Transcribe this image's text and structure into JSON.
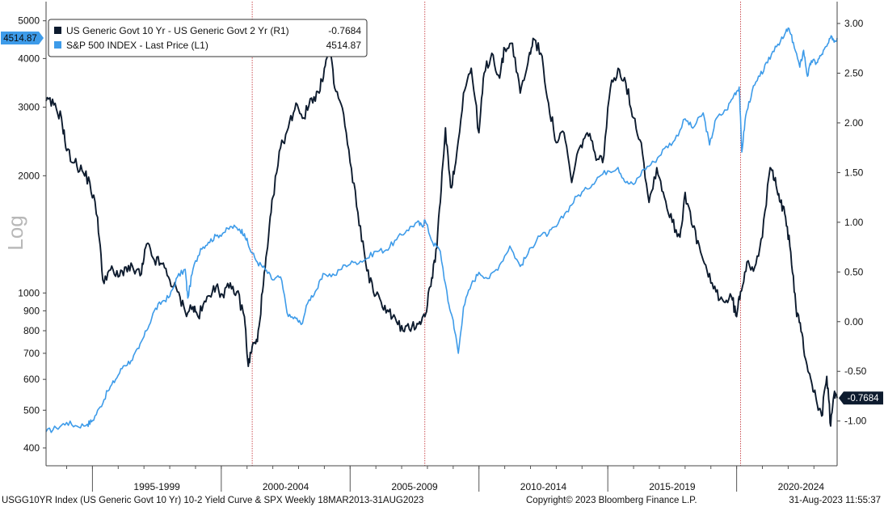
{
  "chart_data": {
    "type": "line",
    "frequency": "Weekly",
    "date_range_text": "18MAR2013-31AUG2023",
    "x_tick_labels": [
      "1995-1999",
      "2000-2004",
      "2005-2009",
      "2010-2014",
      "2015-2019",
      "2020-2024"
    ],
    "y_left": {
      "scale": "log",
      "label": "Log",
      "ylim": [
        360,
        5600
      ],
      "ticks": [
        400,
        500,
        600,
        700,
        800,
        900,
        1000,
        2000,
        3000,
        4000,
        5000
      ],
      "tick_labels": [
        "400",
        "500",
        "600",
        "700",
        "800",
        "900",
        "1000",
        "2000",
        "3000",
        "4000",
        "5000"
      ]
    },
    "y_right": {
      "scale": "linear",
      "ylim": [
        -1.45,
        3.22
      ],
      "ticks": [
        -1.0,
        -0.5,
        0.0,
        0.5,
        1.0,
        1.5,
        2.0,
        2.5,
        3.0
      ],
      "tick_labels": [
        "-1.00",
        "-0.50",
        "0.00",
        "0.50",
        "1.00",
        "1.50",
        "2.00",
        "2.50",
        "3.00"
      ]
    },
    "x_range": [
      1993.2,
      2023.9
    ],
    "recession_lines": [
      2001.2,
      2007.9,
      2020.15
    ],
    "series": [
      {
        "name": "US Generic Govt 10 Yr - US Generic Govt 2 Yr (R1)",
        "axis": "right",
        "color": "#0d1b2e",
        "last_value": -0.7684,
        "last_value_label": "-0.7684",
        "points": [
          [
            1993.2,
            2.22
          ],
          [
            1993.5,
            2.18
          ],
          [
            1993.8,
            2.05
          ],
          [
            1994.0,
            1.72
          ],
          [
            1994.3,
            1.6
          ],
          [
            1994.6,
            1.52
          ],
          [
            1994.9,
            1.4
          ],
          [
            1995.2,
            1.05
          ],
          [
            1995.4,
            0.42
          ],
          [
            1995.7,
            0.52
          ],
          [
            1996.0,
            0.45
          ],
          [
            1996.3,
            0.55
          ],
          [
            1996.6,
            0.52
          ],
          [
            1996.9,
            0.48
          ],
          [
            1997.1,
            0.78
          ],
          [
            1997.4,
            0.62
          ],
          [
            1997.7,
            0.58
          ],
          [
            1998.0,
            0.42
          ],
          [
            1998.3,
            0.3
          ],
          [
            1998.6,
            0.1
          ],
          [
            1998.9,
            0.15
          ],
          [
            1999.1,
            0.05
          ],
          [
            1999.4,
            0.2
          ],
          [
            1999.7,
            0.36
          ],
          [
            2000.0,
            0.28
          ],
          [
            2000.3,
            0.34
          ],
          [
            2000.6,
            0.3
          ],
          [
            2000.9,
            0.05
          ],
          [
            2001.05,
            -0.45
          ],
          [
            2001.2,
            -0.25
          ],
          [
            2001.4,
            -0.2
          ],
          [
            2001.6,
            0.3
          ],
          [
            2001.8,
            0.75
          ],
          [
            2002.0,
            1.25
          ],
          [
            2002.3,
            1.75
          ],
          [
            2002.6,
            1.95
          ],
          [
            2002.9,
            2.2
          ],
          [
            2003.2,
            2.05
          ],
          [
            2003.5,
            2.25
          ],
          [
            2003.8,
            2.3
          ],
          [
            2004.0,
            2.55
          ],
          [
            2004.2,
            2.75
          ],
          [
            2004.4,
            2.35
          ],
          [
            2004.7,
            2.15
          ],
          [
            2005.0,
            1.6
          ],
          [
            2005.3,
            1.1
          ],
          [
            2005.6,
            0.6
          ],
          [
            2005.9,
            0.3
          ],
          [
            2006.2,
            0.2
          ],
          [
            2006.5,
            0.1
          ],
          [
            2006.8,
            0.0
          ],
          [
            2007.1,
            -0.1
          ],
          [
            2007.4,
            -0.05
          ],
          [
            2007.7,
            0.0
          ],
          [
            2007.9,
            0.05
          ],
          [
            2008.1,
            0.35
          ],
          [
            2008.3,
            0.6
          ],
          [
            2008.5,
            1.2
          ],
          [
            2008.7,
            1.95
          ],
          [
            2008.9,
            1.35
          ],
          [
            2009.1,
            1.6
          ],
          [
            2009.4,
            2.3
          ],
          [
            2009.7,
            2.55
          ],
          [
            2010.0,
            1.9
          ],
          [
            2010.2,
            2.5
          ],
          [
            2010.5,
            2.7
          ],
          [
            2010.8,
            2.45
          ],
          [
            2011.0,
            2.75
          ],
          [
            2011.3,
            2.8
          ],
          [
            2011.6,
            2.3
          ],
          [
            2011.9,
            2.6
          ],
          [
            2012.1,
            2.85
          ],
          [
            2012.4,
            2.7
          ],
          [
            2012.7,
            2.2
          ],
          [
            2013.0,
            1.8
          ],
          [
            2013.3,
            1.9
          ],
          [
            2013.6,
            1.4
          ],
          [
            2013.9,
            1.75
          ],
          [
            2014.2,
            1.9
          ],
          [
            2014.5,
            1.7
          ],
          [
            2014.8,
            1.6
          ],
          [
            2015.1,
            2.35
          ],
          [
            2015.4,
            2.55
          ],
          [
            2015.7,
            2.4
          ],
          [
            2016.0,
            2.05
          ],
          [
            2016.3,
            1.8
          ],
          [
            2016.6,
            1.2
          ],
          [
            2016.9,
            1.55
          ],
          [
            2017.2,
            1.25
          ],
          [
            2017.5,
            1.0
          ],
          [
            2017.8,
            0.85
          ],
          [
            2018.0,
            1.3
          ],
          [
            2018.3,
            0.95
          ],
          [
            2018.6,
            0.7
          ],
          [
            2018.9,
            0.45
          ],
          [
            2019.2,
            0.3
          ],
          [
            2019.5,
            0.2
          ],
          [
            2019.8,
            0.25
          ],
          [
            2020.0,
            0.05
          ],
          [
            2020.15,
            0.3
          ],
          [
            2020.4,
            0.6
          ],
          [
            2020.7,
            0.55
          ],
          [
            2021.0,
            0.85
          ],
          [
            2021.3,
            1.55
          ],
          [
            2021.5,
            1.45
          ],
          [
            2021.7,
            1.2
          ],
          [
            2021.9,
            1.05
          ],
          [
            2022.1,
            0.7
          ],
          [
            2022.3,
            0.15
          ],
          [
            2022.5,
            -0.1
          ],
          [
            2022.7,
            -0.4
          ],
          [
            2022.9,
            -0.6
          ],
          [
            2023.1,
            -0.8
          ],
          [
            2023.3,
            -0.95
          ],
          [
            2023.5,
            -0.55
          ],
          [
            2023.65,
            -1.05
          ],
          [
            2023.8,
            -0.7
          ],
          [
            2023.9,
            -0.77
          ]
        ]
      },
      {
        "name": "S&P 500 INDEX - Last Price (L1)",
        "axis": "left",
        "color": "#3d9be9",
        "last_value": 4514.87,
        "last_value_label": "4514.87",
        "points": [
          [
            1993.2,
            440
          ],
          [
            1993.6,
            450
          ],
          [
            1994.0,
            465
          ],
          [
            1994.4,
            455
          ],
          [
            1994.8,
            460
          ],
          [
            1995.0,
            470
          ],
          [
            1995.3,
            510
          ],
          [
            1995.6,
            560
          ],
          [
            1995.9,
            600
          ],
          [
            1996.2,
            650
          ],
          [
            1996.5,
            670
          ],
          [
            1996.8,
            720
          ],
          [
            1997.1,
            800
          ],
          [
            1997.4,
            900
          ],
          [
            1997.7,
            950
          ],
          [
            1998.0,
            980
          ],
          [
            1998.3,
            1100
          ],
          [
            1998.6,
            1150
          ],
          [
            1998.7,
            970
          ],
          [
            1998.9,
            1150
          ],
          [
            1999.2,
            1300
          ],
          [
            1999.5,
            1350
          ],
          [
            1999.8,
            1400
          ],
          [
            2000.1,
            1430
          ],
          [
            2000.4,
            1480
          ],
          [
            2000.7,
            1460
          ],
          [
            2000.9,
            1420
          ],
          [
            2001.1,
            1300
          ],
          [
            2001.4,
            1200
          ],
          [
            2001.7,
            1150
          ],
          [
            2002.0,
            1080
          ],
          [
            2002.3,
            1100
          ],
          [
            2002.6,
            870
          ],
          [
            2002.9,
            860
          ],
          [
            2003.1,
            830
          ],
          [
            2003.4,
            960
          ],
          [
            2003.7,
            1020
          ],
          [
            2004.0,
            1120
          ],
          [
            2004.4,
            1110
          ],
          [
            2004.8,
            1180
          ],
          [
            2005.2,
            1200
          ],
          [
            2005.6,
            1220
          ],
          [
            2006.0,
            1280
          ],
          [
            2006.4,
            1290
          ],
          [
            2006.8,
            1370
          ],
          [
            2007.2,
            1450
          ],
          [
            2007.6,
            1520
          ],
          [
            2007.8,
            1480
          ],
          [
            2007.9,
            1540
          ],
          [
            2008.2,
            1350
          ],
          [
            2008.5,
            1280
          ],
          [
            2008.8,
            950
          ],
          [
            2009.0,
            850
          ],
          [
            2009.2,
            700
          ],
          [
            2009.4,
            920
          ],
          [
            2009.7,
            1050
          ],
          [
            2010.0,
            1130
          ],
          [
            2010.4,
            1090
          ],
          [
            2010.8,
            1180
          ],
          [
            2011.2,
            1320
          ],
          [
            2011.6,
            1170
          ],
          [
            2011.9,
            1260
          ],
          [
            2012.3,
            1400
          ],
          [
            2012.7,
            1420
          ],
          [
            2013.0,
            1480
          ],
          [
            2013.4,
            1620
          ],
          [
            2013.8,
            1770
          ],
          [
            2014.2,
            1850
          ],
          [
            2014.6,
            1980
          ],
          [
            2015.0,
            2060
          ],
          [
            2015.4,
            2100
          ],
          [
            2015.7,
            1920
          ],
          [
            2016.0,
            1900
          ],
          [
            2016.4,
            2080
          ],
          [
            2016.8,
            2170
          ],
          [
            2017.2,
            2350
          ],
          [
            2017.6,
            2470
          ],
          [
            2018.0,
            2800
          ],
          [
            2018.3,
            2650
          ],
          [
            2018.7,
            2900
          ],
          [
            2018.95,
            2400
          ],
          [
            2019.2,
            2800
          ],
          [
            2019.6,
            2950
          ],
          [
            2019.9,
            3230
          ],
          [
            2020.1,
            3380
          ],
          [
            2020.2,
            2300
          ],
          [
            2020.35,
            2850
          ],
          [
            2020.6,
            3300
          ],
          [
            2020.9,
            3600
          ],
          [
            2021.2,
            3900
          ],
          [
            2021.5,
            4300
          ],
          [
            2021.8,
            4500
          ],
          [
            2022.0,
            4790
          ],
          [
            2022.2,
            4400
          ],
          [
            2022.45,
            3800
          ],
          [
            2022.6,
            4200
          ],
          [
            2022.75,
            3600
          ],
          [
            2022.9,
            3950
          ],
          [
            2023.1,
            3900
          ],
          [
            2023.3,
            4100
          ],
          [
            2023.5,
            4300
          ],
          [
            2023.7,
            4550
          ],
          [
            2023.8,
            4450
          ],
          [
            2023.9,
            4514.87
          ]
        ]
      }
    ]
  },
  "legend": [
    {
      "label": "US Generic Govt 10 Yr - US Generic Govt 2 Yr (R1)",
      "value": "-0.7684",
      "color": "#0d1b2e"
    },
    {
      "label": "S&P 500 INDEX - Last Price (L1)",
      "value": "4514.87",
      "color": "#3d9be9"
    }
  ],
  "footer": {
    "left": "USGG10YR Index (US Generic Govt 10 Yr) 10-2 Yield Curve & SPX  Weekly 18MAR2013-31AUG2023",
    "middle": "Copyright© 2023 Bloomberg Finance L.P.",
    "right": "31-Aug-2023 11:55:37"
  }
}
